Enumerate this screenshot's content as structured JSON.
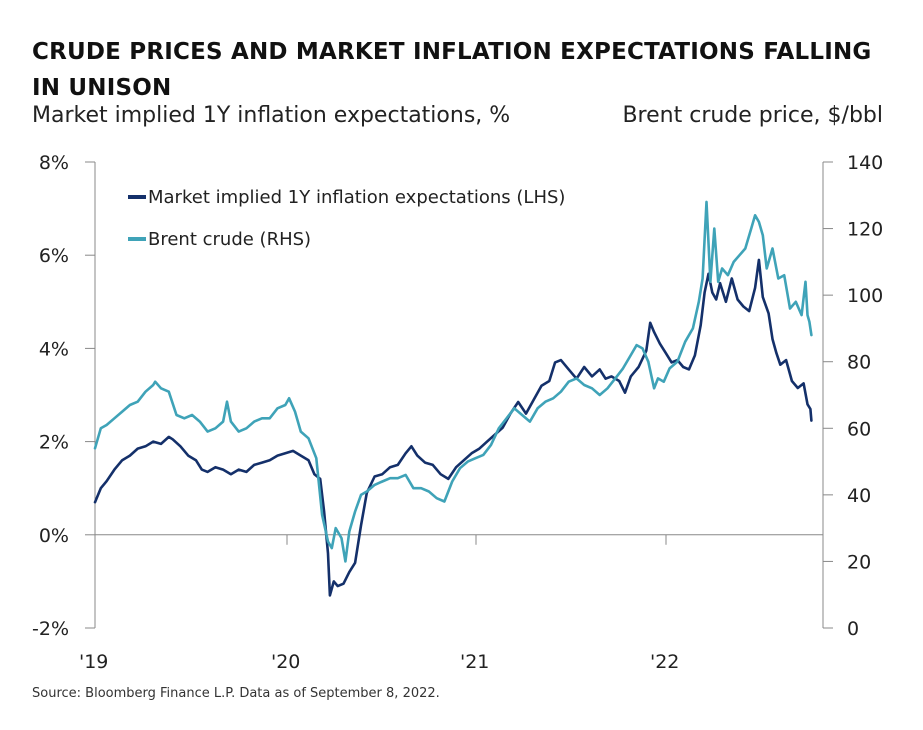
{
  "title": "CRUDE PRICES AND MARKET INFLATION EXPECTATIONS FALLING IN UNISON",
  "subtitle_left": "Market implied 1Y inflation expectations, %",
  "subtitle_right": "Brent crude price, $/bbl",
  "source": "Source: Bloomberg Finance L.P. Data as of September 8, 2022.",
  "colors": {
    "inflation": "#14306a",
    "brent": "#3fa3b8",
    "axis": "#888888"
  },
  "chart_data": {
    "type": "line",
    "x_ticks": [
      "'19",
      "'20",
      "'21",
      "'22"
    ],
    "y_left": {
      "ticks": [
        "-2%",
        "0%",
        "2%",
        "4%",
        "6%",
        "8%"
      ],
      "range": [
        -2,
        8
      ]
    },
    "y_right": {
      "ticks": [
        "0",
        "20",
        "40",
        "60",
        "80",
        "100",
        "120",
        "140"
      ],
      "range": [
        0,
        140
      ]
    },
    "x_range": [
      2019.0,
      2022.75
    ],
    "grid": false,
    "legend_position": "top-left",
    "series": [
      {
        "name": "Market implied 1Y inflation expectations (LHS)",
        "axis": "left",
        "color": "#14306a",
        "points": [
          [
            2019.0,
            0.7
          ],
          [
            2019.03,
            1.0
          ],
          [
            2019.06,
            1.15
          ],
          [
            2019.1,
            1.4
          ],
          [
            2019.14,
            1.6
          ],
          [
            2019.18,
            1.7
          ],
          [
            2019.22,
            1.85
          ],
          [
            2019.26,
            1.9
          ],
          [
            2019.3,
            2.0
          ],
          [
            2019.34,
            1.95
          ],
          [
            2019.38,
            2.1
          ],
          [
            2019.4,
            2.05
          ],
          [
            2019.44,
            1.9
          ],
          [
            2019.48,
            1.7
          ],
          [
            2019.52,
            1.6
          ],
          [
            2019.55,
            1.4
          ],
          [
            2019.58,
            1.35
          ],
          [
            2019.62,
            1.45
          ],
          [
            2019.66,
            1.4
          ],
          [
            2019.7,
            1.3
          ],
          [
            2019.74,
            1.4
          ],
          [
            2019.78,
            1.35
          ],
          [
            2019.82,
            1.5
          ],
          [
            2019.86,
            1.55
          ],
          [
            2019.9,
            1.6
          ],
          [
            2019.94,
            1.7
          ],
          [
            2019.98,
            1.75
          ],
          [
            2020.02,
            1.8
          ],
          [
            2020.06,
            1.7
          ],
          [
            2020.1,
            1.6
          ],
          [
            2020.13,
            1.3
          ],
          [
            2020.16,
            1.2
          ],
          [
            2020.18,
            0.5
          ],
          [
            2020.2,
            -0.4
          ],
          [
            2020.21,
            -1.3
          ],
          [
            2020.23,
            -1.0
          ],
          [
            2020.25,
            -1.1
          ],
          [
            2020.28,
            -1.05
          ],
          [
            2020.31,
            -0.8
          ],
          [
            2020.34,
            -0.6
          ],
          [
            2020.37,
            0.2
          ],
          [
            2020.4,
            0.9
          ],
          [
            2020.44,
            1.25
          ],
          [
            2020.48,
            1.3
          ],
          [
            2020.52,
            1.45
          ],
          [
            2020.56,
            1.5
          ],
          [
            2020.6,
            1.75
          ],
          [
            2020.63,
            1.9
          ],
          [
            2020.66,
            1.7
          ],
          [
            2020.7,
            1.55
          ],
          [
            2020.74,
            1.5
          ],
          [
            2020.78,
            1.3
          ],
          [
            2020.82,
            1.2
          ],
          [
            2020.86,
            1.45
          ],
          [
            2020.9,
            1.6
          ],
          [
            2020.94,
            1.75
          ],
          [
            2020.98,
            1.85
          ],
          [
            2021.02,
            2.0
          ],
          [
            2021.06,
            2.15
          ],
          [
            2021.1,
            2.3
          ],
          [
            2021.14,
            2.6
          ],
          [
            2021.18,
            2.85
          ],
          [
            2021.22,
            2.6
          ],
          [
            2021.26,
            2.9
          ],
          [
            2021.3,
            3.2
          ],
          [
            2021.34,
            3.3
          ],
          [
            2021.37,
            3.7
          ],
          [
            2021.4,
            3.75
          ],
          [
            2021.44,
            3.55
          ],
          [
            2021.48,
            3.35
          ],
          [
            2021.52,
            3.6
          ],
          [
            2021.56,
            3.4
          ],
          [
            2021.6,
            3.55
          ],
          [
            2021.63,
            3.35
          ],
          [
            2021.66,
            3.4
          ],
          [
            2021.7,
            3.3
          ],
          [
            2021.73,
            3.05
          ],
          [
            2021.76,
            3.4
          ],
          [
            2021.8,
            3.6
          ],
          [
            2021.84,
            3.95
          ],
          [
            2021.86,
            4.55
          ],
          [
            2021.88,
            4.35
          ],
          [
            2021.91,
            4.1
          ],
          [
            2021.94,
            3.9
          ],
          [
            2021.97,
            3.7
          ],
          [
            2022.0,
            3.75
          ],
          [
            2022.03,
            3.6
          ],
          [
            2022.06,
            3.55
          ],
          [
            2022.09,
            3.85
          ],
          [
            2022.12,
            4.5
          ],
          [
            2022.14,
            5.2
          ],
          [
            2022.16,
            5.6
          ],
          [
            2022.18,
            5.2
          ],
          [
            2022.2,
            5.05
          ],
          [
            2022.22,
            5.4
          ],
          [
            2022.25,
            5.0
          ],
          [
            2022.28,
            5.5
          ],
          [
            2022.31,
            5.05
          ],
          [
            2022.34,
            4.9
          ],
          [
            2022.37,
            4.8
          ],
          [
            2022.4,
            5.3
          ],
          [
            2022.42,
            5.9
          ],
          [
            2022.44,
            5.1
          ],
          [
            2022.47,
            4.75
          ],
          [
            2022.49,
            4.2
          ],
          [
            2022.51,
            3.9
          ],
          [
            2022.53,
            3.65
          ],
          [
            2022.56,
            3.75
          ],
          [
            2022.59,
            3.3
          ],
          [
            2022.62,
            3.15
          ],
          [
            2022.65,
            3.25
          ],
          [
            2022.67,
            2.8
          ],
          [
            2022.685,
            2.7
          ],
          [
            2022.69,
            2.45
          ]
        ]
      },
      {
        "name": "Brent crude (RHS)",
        "axis": "right",
        "color": "#3fa3b8",
        "points": [
          [
            2019.0,
            54
          ],
          [
            2019.03,
            60
          ],
          [
            2019.06,
            61
          ],
          [
            2019.1,
            63
          ],
          [
            2019.14,
            65
          ],
          [
            2019.18,
            67
          ],
          [
            2019.22,
            68
          ],
          [
            2019.26,
            71
          ],
          [
            2019.3,
            73
          ],
          [
            2019.31,
            74
          ],
          [
            2019.34,
            72
          ],
          [
            2019.38,
            71
          ],
          [
            2019.42,
            64
          ],
          [
            2019.46,
            63
          ],
          [
            2019.5,
            64
          ],
          [
            2019.54,
            62
          ],
          [
            2019.58,
            59
          ],
          [
            2019.62,
            60
          ],
          [
            2019.66,
            62
          ],
          [
            2019.68,
            68
          ],
          [
            2019.7,
            62
          ],
          [
            2019.74,
            59
          ],
          [
            2019.78,
            60
          ],
          [
            2019.82,
            62
          ],
          [
            2019.86,
            63
          ],
          [
            2019.9,
            63
          ],
          [
            2019.94,
            66
          ],
          [
            2019.98,
            67
          ],
          [
            2020.0,
            69
          ],
          [
            2020.03,
            65
          ],
          [
            2020.06,
            59
          ],
          [
            2020.1,
            57
          ],
          [
            2020.14,
            51
          ],
          [
            2020.17,
            34
          ],
          [
            2020.2,
            26
          ],
          [
            2020.22,
            24
          ],
          [
            2020.24,
            30
          ],
          [
            2020.27,
            27
          ],
          [
            2020.29,
            20
          ],
          [
            2020.31,
            29
          ],
          [
            2020.34,
            35
          ],
          [
            2020.37,
            40
          ],
          [
            2020.4,
            41
          ],
          [
            2020.44,
            43
          ],
          [
            2020.48,
            44
          ],
          [
            2020.52,
            45
          ],
          [
            2020.56,
            45
          ],
          [
            2020.6,
            46
          ],
          [
            2020.64,
            42
          ],
          [
            2020.68,
            42
          ],
          [
            2020.72,
            41
          ],
          [
            2020.76,
            39
          ],
          [
            2020.8,
            38
          ],
          [
            2020.84,
            44
          ],
          [
            2020.88,
            48
          ],
          [
            2020.92,
            50
          ],
          [
            2020.96,
            51
          ],
          [
            2021.0,
            52
          ],
          [
            2021.04,
            55
          ],
          [
            2021.08,
            60
          ],
          [
            2021.12,
            63
          ],
          [
            2021.16,
            66
          ],
          [
            2021.2,
            64
          ],
          [
            2021.24,
            62
          ],
          [
            2021.28,
            66
          ],
          [
            2021.32,
            68
          ],
          [
            2021.36,
            69
          ],
          [
            2021.4,
            71
          ],
          [
            2021.44,
            74
          ],
          [
            2021.48,
            75
          ],
          [
            2021.52,
            73
          ],
          [
            2021.56,
            72
          ],
          [
            2021.6,
            70
          ],
          [
            2021.64,
            72
          ],
          [
            2021.68,
            75
          ],
          [
            2021.72,
            78
          ],
          [
            2021.76,
            82
          ],
          [
            2021.79,
            85
          ],
          [
            2021.82,
            84
          ],
          [
            2021.85,
            80
          ],
          [
            2021.88,
            72
          ],
          [
            2021.9,
            75
          ],
          [
            2021.93,
            74
          ],
          [
            2021.96,
            78
          ],
          [
            2022.0,
            80
          ],
          [
            2022.04,
            86
          ],
          [
            2022.08,
            90
          ],
          [
            2022.11,
            98
          ],
          [
            2022.13,
            105
          ],
          [
            2022.15,
            128
          ],
          [
            2022.17,
            104
          ],
          [
            2022.19,
            120
          ],
          [
            2022.21,
            104
          ],
          [
            2022.23,
            108
          ],
          [
            2022.26,
            106
          ],
          [
            2022.29,
            110
          ],
          [
            2022.32,
            112
          ],
          [
            2022.35,
            114
          ],
          [
            2022.38,
            120
          ],
          [
            2022.4,
            124
          ],
          [
            2022.42,
            122
          ],
          [
            2022.44,
            118
          ],
          [
            2022.46,
            108
          ],
          [
            2022.49,
            114
          ],
          [
            2022.52,
            105
          ],
          [
            2022.55,
            106
          ],
          [
            2022.58,
            96
          ],
          [
            2022.61,
            98
          ],
          [
            2022.64,
            94
          ],
          [
            2022.66,
            104
          ],
          [
            2022.67,
            94
          ],
          [
            2022.68,
            92
          ],
          [
            2022.69,
            88
          ]
        ]
      }
    ]
  }
}
